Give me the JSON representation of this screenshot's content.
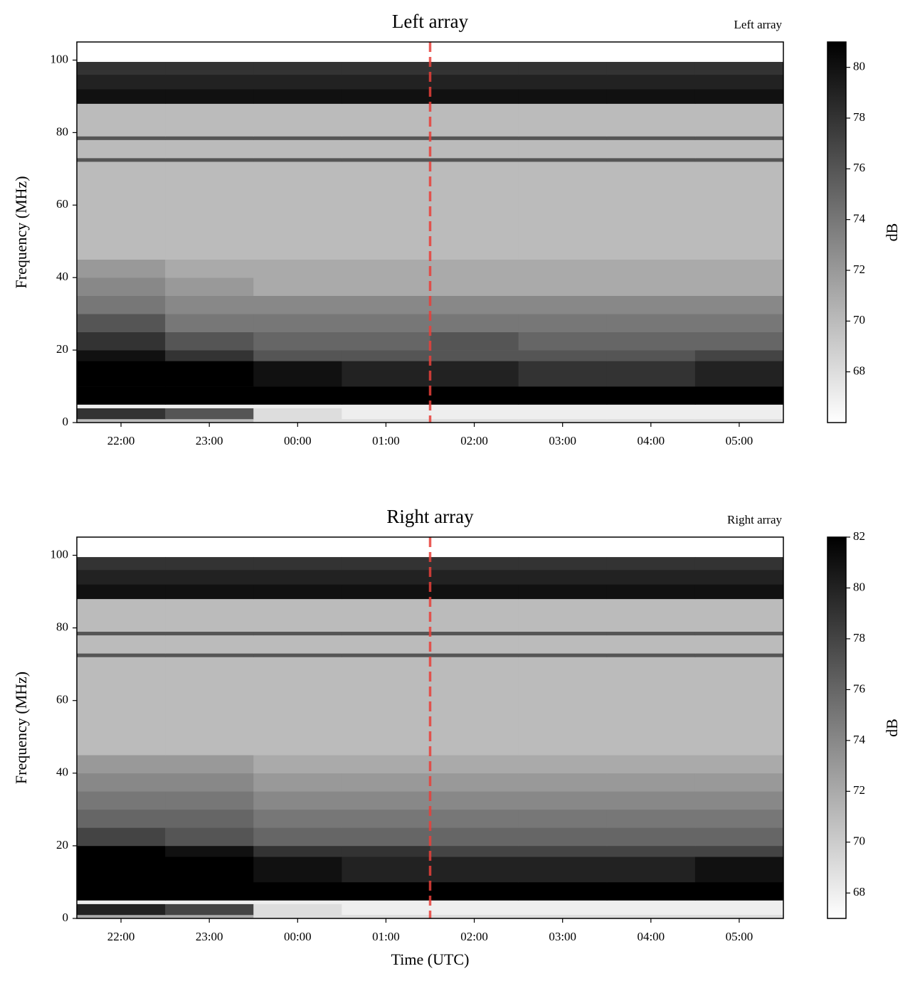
{
  "chart_data": [
    {
      "type": "heatmap",
      "title": "Left array",
      "annotation": "Left array",
      "ylabel": "Frequency (MHz)",
      "xlim": [
        21.5,
        29.5
      ],
      "xticks": [
        {
          "value": 22,
          "label": "22:00"
        },
        {
          "value": 23,
          "label": "23:00"
        },
        {
          "value": 24,
          "label": "00:00"
        },
        {
          "value": 25,
          "label": "01:00"
        },
        {
          "value": 26,
          "label": "02:00"
        },
        {
          "value": 27,
          "label": "03:00"
        },
        {
          "value": 28,
          "label": "04:00"
        },
        {
          "value": 29,
          "label": "05:00"
        }
      ],
      "ylim": [
        0,
        105
      ],
      "yticks": [
        0,
        20,
        40,
        60,
        80,
        100
      ],
      "x_edges": [
        21.5,
        22.5,
        23.5,
        24.5,
        25.5,
        26.5,
        27.5,
        28.5,
        29.5
      ],
      "y_edges": [
        0,
        1,
        4,
        5,
        10,
        17,
        20,
        25,
        30,
        35,
        40,
        45,
        72,
        73,
        78,
        79,
        88,
        92,
        96,
        99.5
      ],
      "z": [
        [
          70,
          70,
          68,
          68,
          68,
          68,
          68,
          68
        ],
        [
          78,
          76,
          68,
          67,
          67,
          67,
          67,
          67
        ],
        [
          67,
          67,
          67,
          67,
          67,
          67,
          67,
          67
        ],
        [
          81,
          81,
          81,
          81,
          81,
          81,
          81,
          81
        ],
        [
          81,
          81,
          80,
          79,
          79,
          78,
          78,
          79
        ],
        [
          80,
          78,
          76,
          76,
          76,
          76,
          76,
          77
        ],
        [
          78,
          76,
          75,
          75,
          76,
          75,
          75,
          75
        ],
        [
          76,
          74,
          74,
          74,
          74,
          74,
          74,
          74
        ],
        [
          74,
          73,
          73,
          73,
          73,
          73,
          73,
          73
        ],
        [
          73,
          72,
          71,
          71,
          71,
          71,
          71,
          71
        ],
        [
          72,
          71,
          71,
          71,
          71,
          71,
          71,
          71
        ],
        [
          70,
          70,
          70,
          70,
          70,
          70,
          70,
          70
        ],
        [
          76,
          76,
          76,
          76,
          76,
          76,
          76,
          76
        ],
        [
          70,
          70,
          70,
          70,
          70,
          70,
          70,
          70
        ],
        [
          76,
          76,
          76,
          76,
          76,
          76,
          76,
          76
        ],
        [
          70,
          70,
          70,
          70,
          70,
          70,
          70,
          70
        ],
        [
          80,
          80,
          80,
          80,
          80,
          80,
          80,
          80
        ],
        [
          79,
          79,
          79,
          79,
          79,
          79,
          79,
          79
        ],
        [
          78,
          78,
          78,
          78,
          78,
          78,
          78,
          78
        ]
      ],
      "colormap": "Greys",
      "clim": [
        66,
        81
      ],
      "colorbar_ticks": [
        68,
        70,
        72,
        74,
        76,
        78,
        80
      ],
      "colorbar_label": "dB",
      "vline": 25.5,
      "vline_color": "#e8403a"
    },
    {
      "type": "heatmap",
      "title": "Right array",
      "annotation": "Right array",
      "ylabel": "Frequency (MHz)",
      "xlabel": "Time (UTC)",
      "xlim": [
        21.5,
        29.5
      ],
      "xticks": [
        {
          "value": 22,
          "label": "22:00"
        },
        {
          "value": 23,
          "label": "23:00"
        },
        {
          "value": 24,
          "label": "00:00"
        },
        {
          "value": 25,
          "label": "01:00"
        },
        {
          "value": 26,
          "label": "02:00"
        },
        {
          "value": 27,
          "label": "03:00"
        },
        {
          "value": 28,
          "label": "04:00"
        },
        {
          "value": 29,
          "label": "05:00"
        }
      ],
      "ylim": [
        0,
        105
      ],
      "yticks": [
        0,
        20,
        40,
        60,
        80,
        100
      ],
      "x_edges": [
        21.5,
        22.5,
        23.5,
        24.5,
        25.5,
        26.5,
        27.5,
        28.5,
        29.5
      ],
      "y_edges": [
        0,
        1,
        4,
        5,
        10,
        17,
        20,
        25,
        30,
        35,
        40,
        45,
        72,
        73,
        78,
        79,
        88,
        92,
        96,
        99.5
      ],
      "z": [
        [
          72,
          72,
          69,
          69,
          69,
          69,
          69,
          69
        ],
        [
          80,
          78,
          69,
          68,
          68,
          68,
          68,
          68
        ],
        [
          68,
          68,
          68,
          68,
          68,
          68,
          68,
          68
        ],
        [
          82,
          82,
          82,
          82,
          82,
          82,
          82,
          82
        ],
        [
          82,
          82,
          81,
          80,
          80,
          80,
          80,
          81
        ],
        [
          82,
          81,
          79,
          79,
          78,
          78,
          78,
          78
        ],
        [
          78,
          77,
          76,
          76,
          76,
          76,
          76,
          76
        ],
        [
          76,
          76,
          75,
          75,
          75,
          75,
          75,
          75
        ],
        [
          75,
          75,
          74,
          74,
          74,
          74,
          74,
          74
        ],
        [
          74,
          74,
          73,
          73,
          73,
          73,
          73,
          73
        ],
        [
          73,
          73,
          72,
          72,
          72,
          72,
          72,
          72
        ],
        [
          71,
          71,
          71,
          71,
          71,
          71,
          71,
          71
        ],
        [
          77,
          77,
          77,
          77,
          77,
          77,
          77,
          77
        ],
        [
          71,
          71,
          71,
          71,
          71,
          71,
          71,
          71
        ],
        [
          77,
          77,
          77,
          77,
          77,
          77,
          77,
          77
        ],
        [
          71,
          71,
          71,
          71,
          71,
          71,
          71,
          71
        ],
        [
          81,
          81,
          81,
          81,
          81,
          81,
          81,
          81
        ],
        [
          80,
          80,
          80,
          80,
          80,
          80,
          80,
          80
        ],
        [
          79,
          79,
          79,
          79,
          79,
          79,
          79,
          79
        ]
      ],
      "colormap": "Greys",
      "clim": [
        67,
        82
      ],
      "colorbar_ticks": [
        68,
        70,
        72,
        74,
        76,
        78,
        80,
        82
      ],
      "colorbar_label": "dB",
      "vline": 25.5,
      "vline_color": "#e8403a"
    }
  ]
}
